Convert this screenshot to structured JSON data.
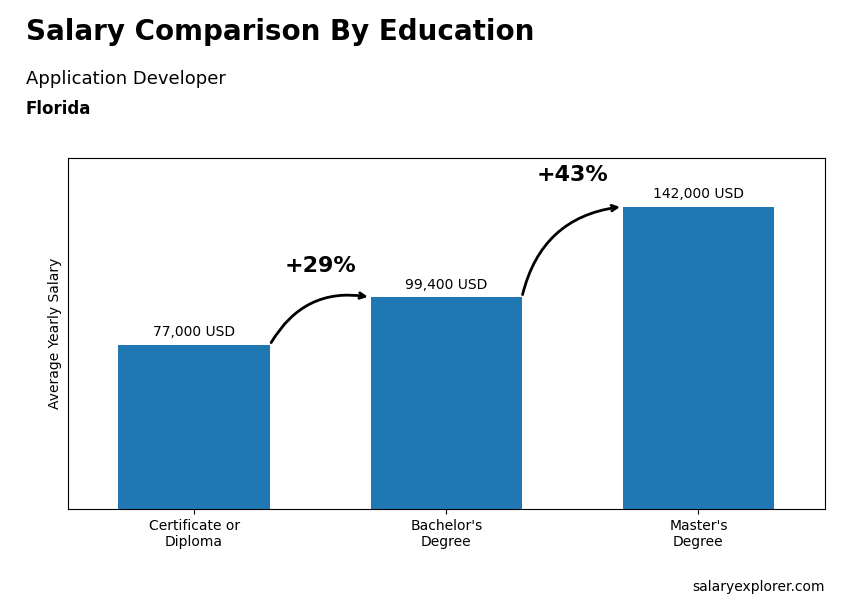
{
  "chart_data": {
    "type": "bar",
    "title": "Salary Comparison By Education",
    "subtitle": "Application Developer",
    "location": "Florida",
    "source": "salaryexplorer.com",
    "ylabel": "Average Yearly Salary",
    "categories": [
      "Certificate or\nDiploma",
      "Bachelor's\nDegree",
      "Master's\nDegree"
    ],
    "values": [
      77000,
      99400,
      142000
    ],
    "value_labels": [
      "77,000 USD",
      "99,400 USD",
      "142,000 USD"
    ],
    "data_labels": true,
    "annotations": [
      "+29%",
      "+43%"
    ],
    "ylim": [
      0,
      165000
    ],
    "tick_labels": "x"
  }
}
